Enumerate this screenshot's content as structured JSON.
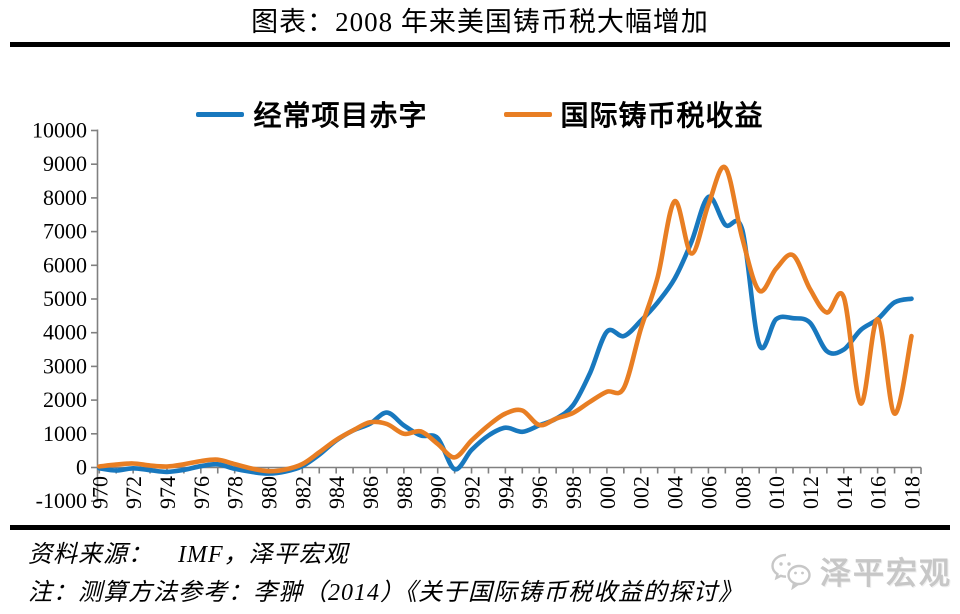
{
  "title": "图表：2008 年来美国铸币税大幅增加",
  "legend": [
    {
      "label": "经常项目赤字",
      "color": "#1878BE"
    },
    {
      "label": "国际铸币税收益",
      "color": "#E87E23"
    }
  ],
  "footer": {
    "source": "资料来源：　IMF，泽平宏观",
    "note": "注：测算方法参考：李翀（2014）《关于国际铸币税收益的探讨》"
  },
  "watermark": {
    "label": "泽平宏观",
    "icon": "wechat-icon",
    "color": "#c7c7c7"
  },
  "chart_data": {
    "type": "line",
    "smooth": true,
    "grid": false,
    "legend_position": "top",
    "background": "#ffffff",
    "axis_color": "#808080",
    "x": [
      1970,
      1971,
      1972,
      1973,
      1974,
      1975,
      1976,
      1977,
      1978,
      1979,
      1980,
      1981,
      1982,
      1983,
      1984,
      1985,
      1986,
      1987,
      1988,
      1989,
      1990,
      1991,
      1992,
      1993,
      1994,
      1995,
      1996,
      1997,
      1998,
      1999,
      2000,
      2001,
      2002,
      2003,
      2004,
      2005,
      2006,
      2007,
      2008,
      2009,
      2010,
      2011,
      2012,
      2013,
      2014,
      2015,
      2016,
      2017,
      2018
    ],
    "series": [
      {
        "name": "经常项目赤字",
        "color": "#1878BE",
        "values": [
          -25,
          -90,
          -25,
          -80,
          -130,
          -70,
          40,
          95,
          -40,
          -130,
          -180,
          -120,
          40,
          380,
          800,
          1100,
          1300,
          1630,
          1250,
          950,
          870,
          -50,
          520,
          950,
          1180,
          1060,
          1250,
          1450,
          1850,
          2800,
          4030,
          3900,
          4350,
          4900,
          5600,
          6700,
          8030,
          7200,
          7050,
          3650,
          4400,
          4430,
          4300,
          3450,
          3500,
          4080,
          4400,
          4900,
          5010
        ]
      },
      {
        "name": "国际铸币税收益",
        "color": "#E87E23",
        "values": [
          30,
          85,
          120,
          60,
          30,
          95,
          190,
          230,
          100,
          -30,
          -110,
          -60,
          100,
          450,
          820,
          1100,
          1340,
          1290,
          1000,
          1070,
          700,
          300,
          800,
          1250,
          1600,
          1690,
          1260,
          1450,
          1620,
          1950,
          2250,
          2360,
          4100,
          5650,
          7900,
          6350,
          7800,
          8900,
          6800,
          5250,
          5900,
          6300,
          5300,
          4600,
          5050,
          1900,
          4400,
          1600,
          3900
        ]
      }
    ],
    "ylim": [
      -1000,
      10000
    ],
    "ytick_step": 1000,
    "ytick_labels": [
      "-1000",
      "0",
      "1000",
      "2000",
      "3000",
      "4000",
      "5000",
      "6000",
      "7000",
      "8000",
      "9000",
      "10000"
    ],
    "xtick_labels": [
      "970",
      "972",
      "974",
      "976",
      "978",
      "980",
      "982",
      "984",
      "986",
      "988",
      "990",
      "992",
      "994",
      "996",
      "998",
      "000",
      "002",
      "004",
      "006",
      "008",
      "010",
      "012",
      "014",
      "016",
      "018"
    ],
    "xlabel": "",
    "ylabel": ""
  }
}
